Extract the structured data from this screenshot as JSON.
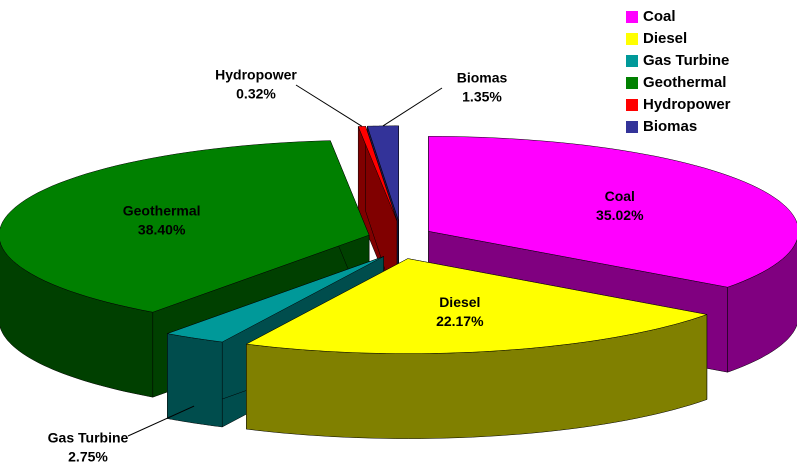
{
  "chart_data": {
    "type": "pie3d",
    "categories": [
      "Coal",
      "Diesel",
      "Gas Turbine",
      "Geothermal",
      "Hydropower",
      "Biomas"
    ],
    "values": [
      35.02,
      22.17,
      2.75,
      38.4,
      0.32,
      1.35
    ],
    "value_labels": [
      "35.02%",
      "22.17%",
      "2.75%",
      "38.40%",
      "0.32%",
      "1.35%"
    ],
    "colors": [
      "#ff00ff",
      "#ffff00",
      "#009999",
      "#008000",
      "#ff0000",
      "#333399"
    ],
    "legend": "top-right"
  }
}
